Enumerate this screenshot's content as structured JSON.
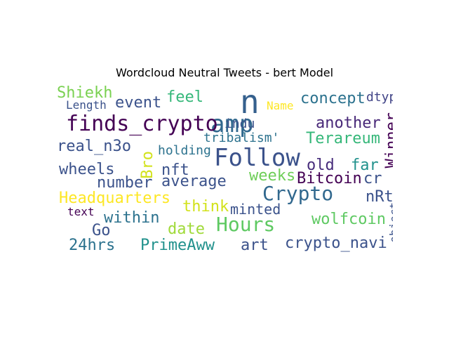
{
  "title": "Wordcloud Neutral Tweets - bert Model",
  "chart_data": {
    "type": "wordcloud",
    "title": "Wordcloud Neutral Tweets - bert Model",
    "words": [
      {
        "text": "Follow",
        "color": "#3b528b"
      },
      {
        "text": "amp",
        "color": "#31688e"
      },
      {
        "text": "n",
        "color": "#35608d"
      },
      {
        "text": "finds_crypto",
        "color": "#440154"
      },
      {
        "text": "Crypto",
        "color": "#31688e"
      },
      {
        "text": "Hours",
        "color": "#5ec962"
      },
      {
        "text": "Shiekh",
        "color": "#7ad151"
      },
      {
        "text": "event",
        "color": "#3b528b"
      },
      {
        "text": "feel",
        "color": "#35b779"
      },
      {
        "text": "concept",
        "color": "#2c728e"
      },
      {
        "text": "dtype",
        "color": "#414487"
      },
      {
        "text": "Length",
        "color": "#3b528b"
      },
      {
        "text": "Name",
        "color": "#fde725"
      },
      {
        "text": "indu",
        "color": "#3b528b"
      },
      {
        "text": "another",
        "color": "#482878"
      },
      {
        "text": "Winner",
        "color": "#440154"
      },
      {
        "text": "tribalism'",
        "color": "#2c728e"
      },
      {
        "text": "Terareum",
        "color": "#35b779"
      },
      {
        "text": "real_n3o",
        "color": "#3b528b"
      },
      {
        "text": "Bro",
        "color": "#d2e21b"
      },
      {
        "text": "holding",
        "color": "#2c728e"
      },
      {
        "text": "wheels",
        "color": "#3b528b"
      },
      {
        "text": "nft",
        "color": "#3b528b"
      },
      {
        "text": "old",
        "color": "#472d7b"
      },
      {
        "text": "far",
        "color": "#21918c"
      },
      {
        "text": "weeks",
        "color": "#6ece58"
      },
      {
        "text": "number",
        "color": "#3b528b"
      },
      {
        "text": "average",
        "color": "#3b528b"
      },
      {
        "text": "Bitcoin",
        "color": "#440154"
      },
      {
        "text": "cr",
        "color": "#3b528b"
      },
      {
        "text": "Headquarters",
        "color": "#fde725"
      },
      {
        "text": "nRt",
        "color": "#3b528b"
      },
      {
        "text": "text",
        "color": "#440154"
      },
      {
        "text": "think",
        "color": "#d2e21b"
      },
      {
        "text": "minted",
        "color": "#3b528b"
      },
      {
        "text": "within",
        "color": "#2c728e"
      },
      {
        "text": "wolfcoin",
        "color": "#5ec962"
      },
      {
        "text": "object",
        "color": "#3b528b"
      },
      {
        "text": "Go",
        "color": "#3b528b"
      },
      {
        "text": "date",
        "color": "#a0da39"
      },
      {
        "text": "24hrs",
        "color": "#2c728e"
      },
      {
        "text": "PrimeAww",
        "color": "#21918c"
      },
      {
        "text": "art",
        "color": "#3b528b"
      },
      {
        "text": "crypto_navi",
        "color": "#3b528b"
      }
    ]
  }
}
